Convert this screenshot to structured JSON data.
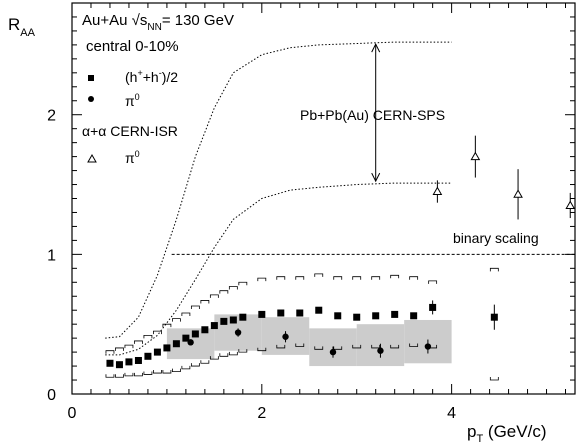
{
  "chart_data": {
    "type": "scatter",
    "xlabel": {
      "main": "p",
      "sub": "T",
      "rest": " (GeV/c)"
    },
    "ylabel": {
      "main": "R",
      "sub": "AA"
    },
    "xlim": [
      0,
      5.3
    ],
    "ylim": [
      0,
      2.8
    ],
    "xticks": [
      "0",
      "2",
      "4"
    ],
    "yticks": [
      "0",
      "1",
      "2"
    ],
    "legend": {
      "system_line": {
        "pre": "Au+Au ",
        "root": "√",
        "s": "s",
        "s_sub": "NN",
        "post": "= 130 GeV"
      },
      "centrality": "central 0-10%",
      "hadrons_label": {
        "a": "(h",
        "sup1": "+",
        "b": "+h",
        "sup2": "-",
        "c": ")/2"
      },
      "pi0_label": {
        "main": "π",
        "sup": "0"
      },
      "isr_label": "α+α CERN-ISR",
      "isr_pi0_label": {
        "main": "π",
        "sup": "0"
      }
    },
    "annotations": {
      "sps": "Pb+Pb(Au) CERN-SPS",
      "binary": "binary scaling"
    },
    "binary_scaling": {
      "y": 1.0,
      "x_from": 1.05,
      "x_to": 5.3
    },
    "series": [
      {
        "name": "(h++h-)/2",
        "marker": "square",
        "x": [
          0.4,
          0.5,
          0.6,
          0.7,
          0.8,
          0.9,
          1.0,
          1.1,
          1.2,
          1.3,
          1.4,
          1.5,
          1.6,
          1.7,
          1.8,
          2.0,
          2.2,
          2.4,
          2.6,
          2.8,
          3.0,
          3.2,
          3.4,
          3.6,
          3.8,
          4.45
        ],
        "y": [
          0.22,
          0.21,
          0.23,
          0.24,
          0.27,
          0.3,
          0.33,
          0.36,
          0.4,
          0.43,
          0.46,
          0.49,
          0.52,
          0.53,
          0.55,
          0.57,
          0.58,
          0.58,
          0.6,
          0.56,
          0.55,
          0.56,
          0.57,
          0.56,
          0.62,
          0.55
        ],
        "err": [
          0,
          0,
          0,
          0,
          0,
          0,
          0,
          0,
          0,
          0,
          0,
          0,
          0,
          0,
          0,
          0,
          0,
          0,
          0,
          0,
          0,
          0,
          0,
          0,
          0.05,
          0.09
        ],
        "sys_lo": [
          0.12,
          0.12,
          0.13,
          0.13,
          0.14,
          0.15,
          0.15,
          0.16,
          0.18,
          0.2,
          0.22,
          0.25,
          0.27,
          0.28,
          0.3,
          0.31,
          0.33,
          0.34,
          0.32,
          0.32,
          0.33,
          0.33,
          0.33,
          0.34,
          0.33,
          0.1
        ],
        "sys_hi": [
          0.31,
          0.33,
          0.35,
          0.38,
          0.42,
          0.45,
          0.5,
          0.54,
          0.58,
          0.63,
          0.67,
          0.71,
          0.74,
          0.77,
          0.8,
          0.83,
          0.84,
          0.84,
          0.86,
          0.84,
          0.84,
          0.84,
          0.85,
          0.84,
          0.81,
          0.9
        ]
      },
      {
        "name": "π0 (Au+Au)",
        "marker": "circle",
        "x": [
          1.25,
          1.75,
          2.25,
          2.75,
          3.25,
          3.75
        ],
        "y": [
          0.37,
          0.44,
          0.41,
          0.3,
          0.31,
          0.34
        ],
        "err": [
          0.02,
          0.03,
          0.04,
          0.04,
          0.05,
          0.05
        ],
        "band": [
          [
            0.25,
            0.47
          ],
          [
            0.31,
            0.57
          ],
          [
            0.28,
            0.55
          ],
          [
            0.2,
            0.47
          ],
          [
            0.2,
            0.5
          ],
          [
            0.22,
            0.53
          ]
        ]
      },
      {
        "name": "α+α CERN-ISR π0",
        "marker": "triangle-open",
        "x": [
          3.85,
          4.25,
          4.7,
          5.25
        ],
        "y": [
          1.45,
          1.7,
          1.43,
          1.35
        ],
        "err": [
          0.08,
          0.15,
          0.18,
          0.09
        ]
      }
    ],
    "sps_curves": {
      "lower": {
        "x": [
          0.35,
          0.5,
          0.7,
          0.9,
          1.1,
          1.3,
          1.5,
          1.7,
          2.0,
          2.3,
          2.6,
          3.0,
          3.4,
          3.8,
          4.0
        ],
        "y": [
          0.28,
          0.28,
          0.32,
          0.42,
          0.6,
          0.82,
          1.05,
          1.25,
          1.4,
          1.46,
          1.48,
          1.5,
          1.51,
          1.51,
          1.51
        ]
      },
      "upper": {
        "x": [
          0.35,
          0.5,
          0.7,
          0.9,
          1.1,
          1.3,
          1.5,
          1.7,
          2.0,
          2.3,
          2.6,
          3.0,
          3.4,
          3.8,
          4.0
        ],
        "y": [
          0.4,
          0.41,
          0.55,
          0.85,
          1.25,
          1.7,
          2.05,
          2.3,
          2.43,
          2.48,
          2.5,
          2.51,
          2.52,
          2.52,
          2.52
        ]
      },
      "arrow_x": 3.2,
      "arrow_y_top": 2.52,
      "arrow_y_bottom": 1.51
    }
  }
}
